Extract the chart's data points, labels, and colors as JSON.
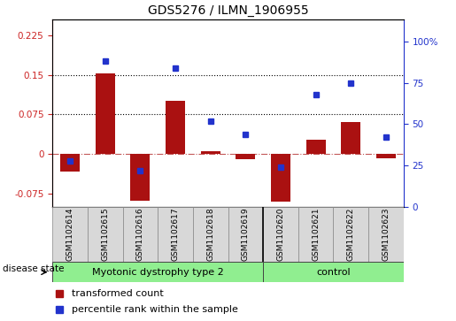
{
  "title": "GDS5276 / ILMN_1906955",
  "samples": [
    "GSM1102614",
    "GSM1102615",
    "GSM1102616",
    "GSM1102617",
    "GSM1102618",
    "GSM1102619",
    "GSM1102620",
    "GSM1102621",
    "GSM1102622",
    "GSM1102623"
  ],
  "bar_values": [
    -0.033,
    0.152,
    -0.088,
    0.1,
    0.005,
    -0.01,
    -0.09,
    0.028,
    0.06,
    -0.008
  ],
  "scatter_values": [
    0.28,
    0.88,
    0.22,
    0.84,
    0.52,
    0.44,
    0.24,
    0.68,
    0.75,
    0.42
  ],
  "bar_color": "#aa1111",
  "scatter_color": "#2233cc",
  "ylim_left": [
    -0.1,
    0.255
  ],
  "ylim_right": [
    0,
    1.133
  ],
  "yticks_left": [
    -0.075,
    0,
    0.075,
    0.15,
    0.225
  ],
  "yticks_right": [
    0,
    0.25,
    0.5,
    0.75,
    1.0
  ],
  "ytick_labels_right": [
    "0",
    "25",
    "50",
    "75",
    "100%"
  ],
  "ytick_labels_left": [
    "-0.075",
    "0",
    "0.075",
    "0.15",
    "0.225"
  ],
  "dotted_lines": [
    0.075,
    0.15
  ],
  "disease_groups": [
    {
      "label": "Myotonic dystrophy type 2",
      "n": 6,
      "color": "#90ee90"
    },
    {
      "label": "control",
      "n": 4,
      "color": "#90ee90"
    }
  ],
  "legend_items": [
    {
      "label": "transformed count",
      "color": "#aa1111"
    },
    {
      "label": "percentile rank within the sample",
      "color": "#2233cc"
    }
  ],
  "disease_state_label": "disease state",
  "separator_index": 6,
  "fig_width": 5.15,
  "fig_height": 3.63,
  "dpi": 100
}
